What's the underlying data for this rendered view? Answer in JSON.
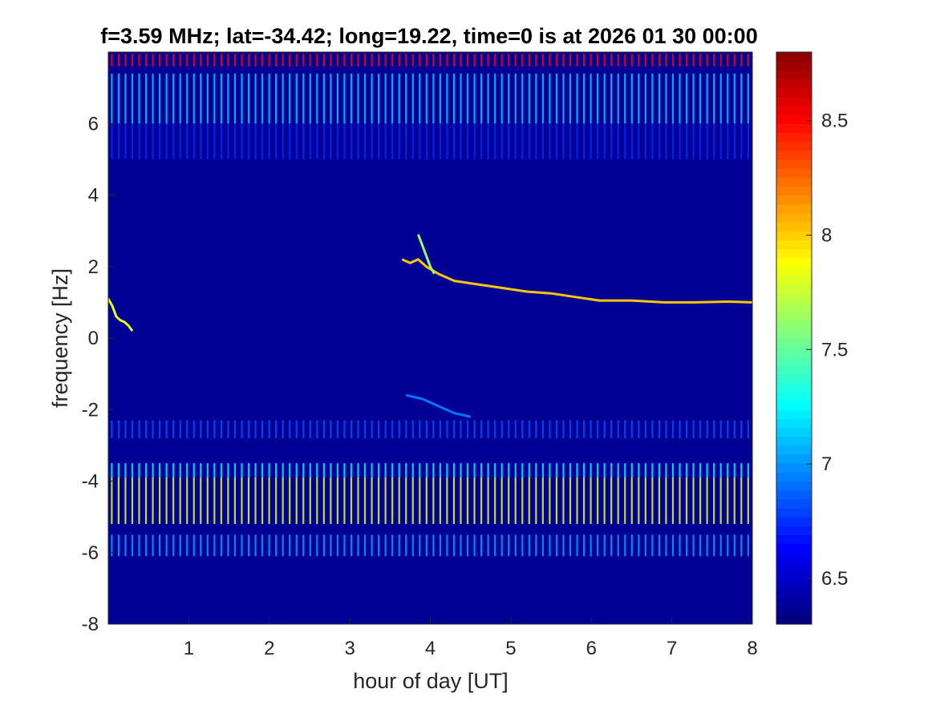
{
  "chart_data": {
    "type": "heatmap",
    "title": "f=3.59 MHz;  lat=-34.42; long=19.22, time=0 is at 2026 01 30 00:00",
    "xlabel": "hour of day [UT]",
    "ylabel": "frequency [Hz]",
    "xlim": [
      0,
      8
    ],
    "ylim": [
      -8,
      8
    ],
    "x_ticks": [
      1,
      2,
      3,
      4,
      5,
      6,
      7,
      8
    ],
    "x_tick_labels": [
      "1",
      "2",
      "3",
      "4",
      "5",
      "6",
      "7",
      "8"
    ],
    "y_ticks": [
      -8,
      -6,
      -4,
      -2,
      0,
      2,
      4,
      6
    ],
    "y_tick_labels": [
      "-8",
      "-6",
      "-4",
      "-2",
      "0",
      "2",
      "4",
      "6"
    ],
    "colorbar": {
      "colormap": "jet",
      "range": [
        6.3,
        8.8
      ],
      "ticks": [
        6.5,
        7,
        7.5,
        8,
        8.5
      ],
      "tick_labels": [
        "6.5",
        "7",
        "7.5",
        "8",
        "8.5"
      ]
    },
    "background_level": 6.35,
    "horizontal_bands": [
      {
        "freq_min": 7.6,
        "freq_max": 7.95,
        "level": 8.5
      },
      {
        "freq_min": 6.0,
        "freq_max": 7.4,
        "level": 7.1
      },
      {
        "freq_min": 5.0,
        "freq_max": 6.0,
        "level": 6.7
      },
      {
        "freq_min": -3.9,
        "freq_max": -3.5,
        "level": 7.2
      },
      {
        "freq_min": -5.2,
        "freq_max": -3.9,
        "level": 7.8
      },
      {
        "freq_min": -6.1,
        "freq_max": -5.5,
        "level": 7.0
      },
      {
        "freq_min": -2.8,
        "freq_max": -2.3,
        "level": 6.8
      }
    ],
    "pulse_period_hours": 0.085,
    "traces": [
      {
        "x": [
          0.0,
          0.05,
          0.1,
          0.15,
          0.2,
          0.25,
          0.3
        ],
        "y": [
          1.1,
          0.9,
          0.6,
          0.5,
          0.45,
          0.35,
          0.2
        ],
        "level": 7.8
      },
      {
        "x": [
          3.65,
          3.75,
          3.85,
          3.95,
          4.1,
          4.3,
          4.6,
          4.9,
          5.2,
          5.5,
          5.8,
          6.1,
          6.5,
          6.9,
          7.3,
          7.7,
          8.0
        ],
        "y": [
          2.2,
          2.1,
          2.2,
          2.0,
          1.8,
          1.6,
          1.5,
          1.4,
          1.3,
          1.25,
          1.15,
          1.05,
          1.05,
          1.0,
          1.0,
          1.02,
          1.0
        ],
        "level": 8.0
      },
      {
        "x": [
          3.85,
          3.9,
          3.95,
          4.0,
          4.05
        ],
        "y": [
          2.9,
          2.6,
          2.3,
          2.0,
          1.8
        ],
        "level": 7.6
      },
      {
        "x": [
          3.7,
          3.9,
          4.1,
          4.3,
          4.5
        ],
        "y": [
          -1.6,
          -1.7,
          -1.9,
          -2.1,
          -2.2
        ],
        "level": 6.9
      }
    ]
  }
}
